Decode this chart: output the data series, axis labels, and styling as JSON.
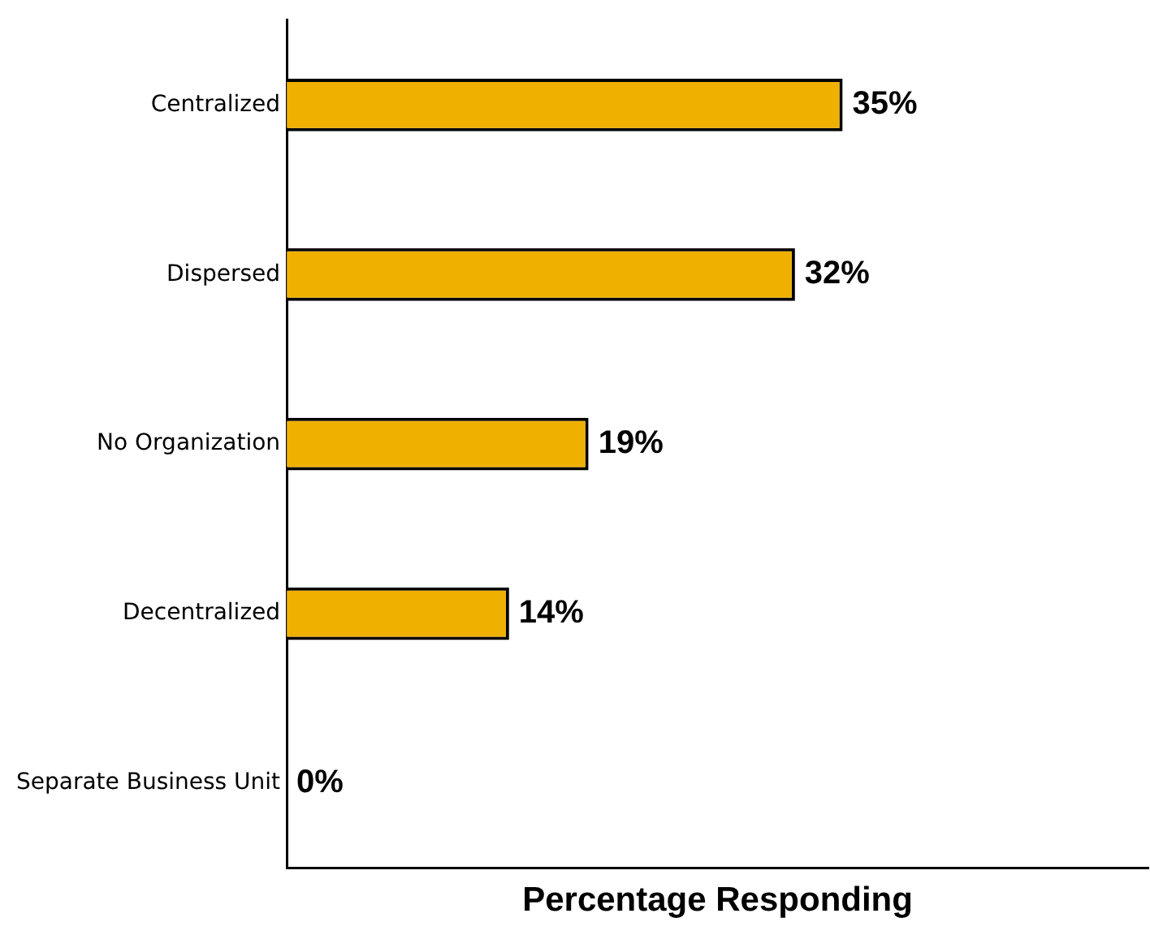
{
  "chart_data": {
    "type": "bar",
    "orientation": "horizontal",
    "categories": [
      "Centralized",
      "Dispersed",
      "No Organization",
      "Decentralized",
      "Separate Business Unit"
    ],
    "values": [
      35,
      32,
      19,
      14,
      0
    ],
    "color": "#efb000",
    "xlabel": "Percentage Responding",
    "value_labels": [
      "35%",
      "32%",
      "19%",
      "14%",
      "0%"
    ],
    "tick_labels": "y"
  }
}
